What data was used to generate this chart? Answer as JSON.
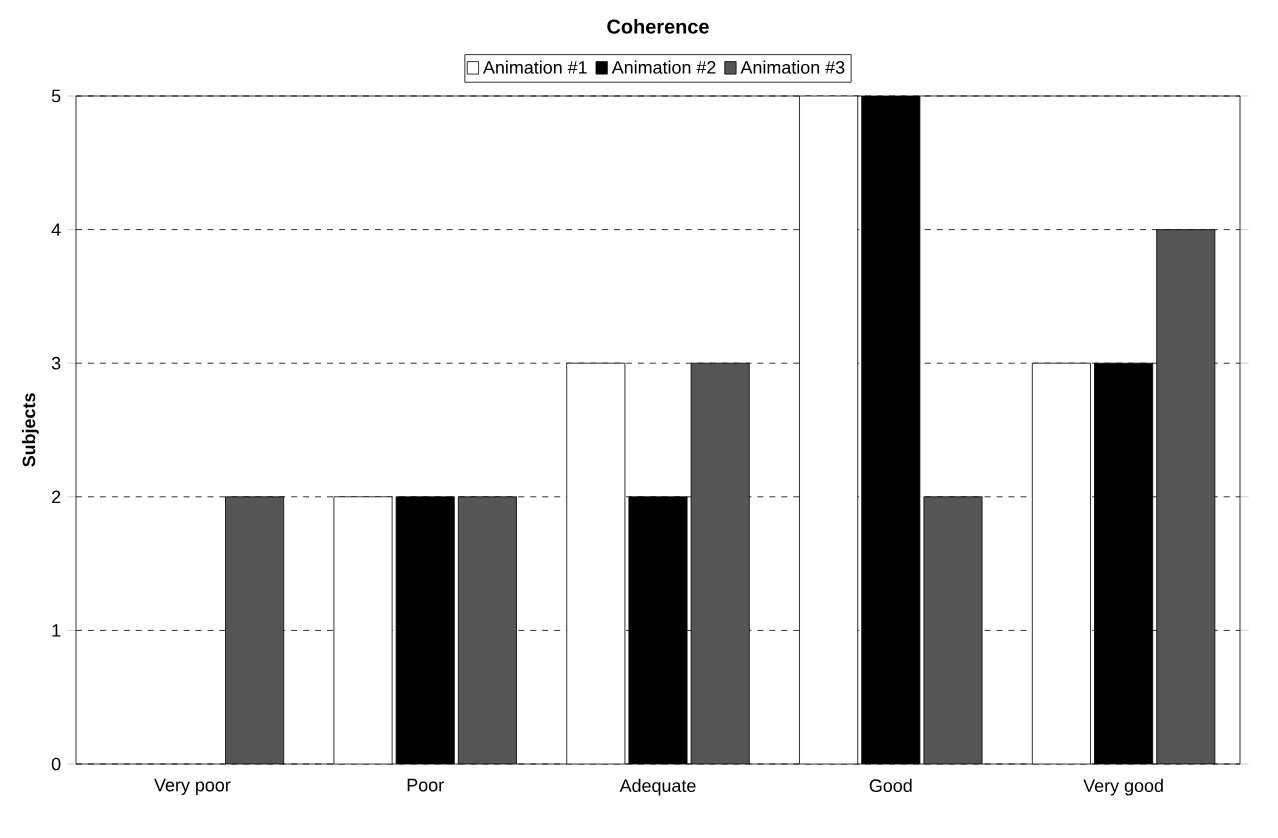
{
  "chart_data": {
    "type": "bar",
    "title": "Coherence",
    "ylabel": "Subjects",
    "categories": [
      "Very poor",
      "Poor",
      "Adequate",
      "Good",
      "Very good"
    ],
    "series": [
      {
        "name": "Animation #1",
        "color": "#ffffff",
        "values": [
          0,
          2,
          3,
          5,
          3
        ]
      },
      {
        "name": "Animation #2",
        "color": "#000000",
        "values": [
          0,
          2,
          2,
          5,
          3
        ]
      },
      {
        "name": "Animation #3",
        "color": "#555555",
        "values": [
          2,
          2,
          3,
          2,
          4
        ]
      }
    ],
    "ylim": [
      0,
      5
    ],
    "yticks": [
      0,
      1,
      2,
      3,
      4,
      5
    ],
    "grid": "y",
    "legend": "top"
  }
}
